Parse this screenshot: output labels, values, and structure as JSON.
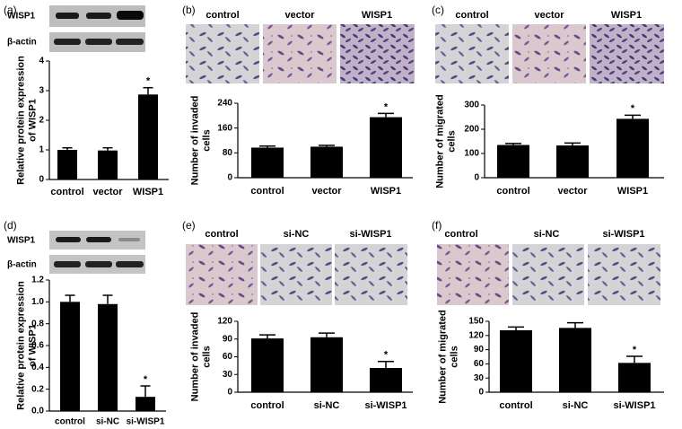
{
  "chart_data": [
    {
      "type": "bar",
      "panel_label": "(a)",
      "ylabel": [
        "Relative  protein expression",
        "of WISP1"
      ],
      "blot_labels": [
        "WISP1",
        "β-actin"
      ],
      "categories": [
        "control",
        "vector",
        "WISP1"
      ],
      "values": [
        1.0,
        0.98,
        2.87
      ],
      "errors": [
        0.07,
        0.09,
        0.23
      ],
      "color": "#000000",
      "ylim": [
        0,
        4
      ],
      "yticks": [
        0,
        1,
        2,
        3,
        4
      ],
      "annotations": [
        {
          "text": "*",
          "category": "WISP1"
        }
      ]
    },
    {
      "type": "bar",
      "panel_label": "(b)",
      "ylabel": [
        "Number of invaded",
        "cells"
      ],
      "image_labels": [
        "control",
        "vector",
        "WISP1"
      ],
      "categories": [
        "control",
        "vector",
        "WISP1"
      ],
      "values": [
        97,
        100,
        195
      ],
      "errors": [
        5,
        4,
        12
      ],
      "color": "#000000",
      "ylim": [
        0,
        240
      ],
      "yticks": [
        0,
        80,
        160,
        240
      ],
      "annotations": [
        {
          "text": "*",
          "category": "WISP1"
        }
      ]
    },
    {
      "type": "bar",
      "panel_label": "(c)",
      "ylabel": [
        "Number of migrated",
        "cells"
      ],
      "image_labels": [
        "control",
        "vector",
        "WISP1"
      ],
      "categories": [
        "control",
        "vector",
        "WISP1"
      ],
      "values": [
        135,
        133,
        243
      ],
      "errors": [
        6,
        10,
        15
      ],
      "color": "#000000",
      "ylim": [
        0,
        300
      ],
      "yticks": [
        0,
        100,
        200,
        300
      ],
      "annotations": [
        {
          "text": "*",
          "category": "WISP1"
        }
      ]
    },
    {
      "type": "bar",
      "panel_label": "(d)",
      "ylabel": [
        "Relative  protein expression",
        "of WISP1"
      ],
      "blot_labels": [
        "WISP1",
        "β-actin"
      ],
      "categories": [
        "control",
        "si-NC",
        "si-WISP1"
      ],
      "values": [
        1.0,
        0.98,
        0.13
      ],
      "errors": [
        0.06,
        0.08,
        0.1
      ],
      "color": "#000000",
      "ylim": [
        0,
        1.2
      ],
      "yticks": [
        {
          "value": 0,
          "label": "0.0"
        },
        0.2,
        0.4,
        0.6,
        0.8,
        {
          "value": 1,
          "label": "1.0"
        },
        1.2
      ],
      "annotations": [
        {
          "text": "*",
          "category": "si-WISP1"
        }
      ]
    },
    {
      "type": "bar",
      "panel_label": "(e)",
      "ylabel": [
        "Number of invaded",
        "cells"
      ],
      "image_labels": [
        "control",
        "si-NC",
        "si-WISP1"
      ],
      "categories": [
        "control",
        "si-NC",
        "si-WISP1"
      ],
      "values": [
        91,
        93,
        41
      ],
      "errors": [
        6,
        7,
        11
      ],
      "color": "#000000",
      "ylim": [
        0,
        120
      ],
      "yticks": [
        0,
        30,
        60,
        90,
        120
      ],
      "annotations": [
        {
          "text": "*",
          "category": "si-WISP1"
        }
      ]
    },
    {
      "type": "bar",
      "panel_label": "(f)",
      "ylabel": [
        "Number of migrated",
        "cells"
      ],
      "image_labels": [
        "control",
        "si-NC",
        "si-WISP1"
      ],
      "categories": [
        "control",
        "si-NC",
        "si-WISP1"
      ],
      "values": [
        131,
        136,
        62
      ],
      "errors": [
        7,
        11,
        14
      ],
      "color": "#000000",
      "ylim": [
        0,
        150
      ],
      "yticks": [
        0,
        30,
        60,
        90,
        120,
        150
      ],
      "annotations": [
        {
          "text": "*",
          "category": "si-WISP1"
        }
      ]
    }
  ]
}
